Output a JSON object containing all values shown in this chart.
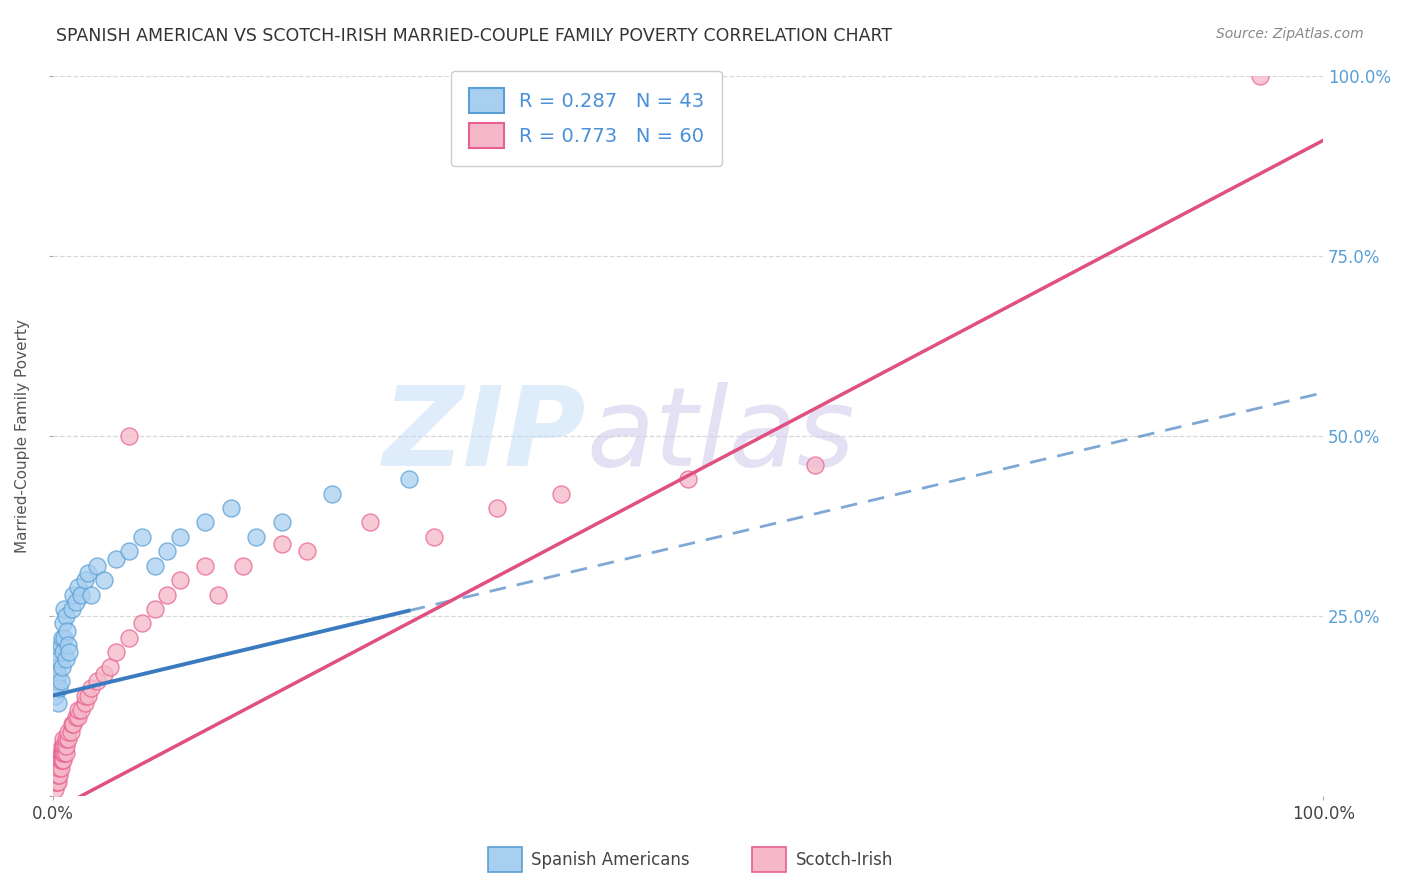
{
  "title": "SPANISH AMERICAN VS SCOTCH-IRISH MARRIED-COUPLE FAMILY POVERTY CORRELATION CHART",
  "source": "Source: ZipAtlas.com",
  "ylabel": "Married-Couple Family Poverty",
  "xmin": 0.0,
  "xmax": 1.0,
  "ymin": 0.0,
  "ymax": 1.0,
  "right_ytick_labels": [
    "100.0%",
    "75.0%",
    "50.0%",
    "25.0%"
  ],
  "right_ytick_positions": [
    1.0,
    0.75,
    0.5,
    0.25
  ],
  "blue_R": "0.287",
  "blue_N": "43",
  "pink_R": "0.773",
  "pink_N": "60",
  "blue_color": "#a8cff0",
  "pink_color": "#f5b8c8",
  "blue_edge_color": "#5a9fd4",
  "pink_edge_color": "#e86090",
  "blue_line_color": "#3a7abf",
  "pink_line_color": "#e05080",
  "background_color": "#ffffff",
  "grid_color": "#d8d8d8",
  "blue_scatter": [
    [
      0.002,
      0.14
    ],
    [
      0.003,
      0.16
    ],
    [
      0.003,
      0.18
    ],
    [
      0.003,
      0.2
    ],
    [
      0.004,
      0.13
    ],
    [
      0.004,
      0.17
    ],
    [
      0.005,
      0.15
    ],
    [
      0.005,
      0.19
    ],
    [
      0.006,
      0.16
    ],
    [
      0.006,
      0.21
    ],
    [
      0.007,
      0.22
    ],
    [
      0.007,
      0.18
    ],
    [
      0.008,
      0.2
    ],
    [
      0.008,
      0.24
    ],
    [
      0.009,
      0.22
    ],
    [
      0.009,
      0.26
    ],
    [
      0.01,
      0.25
    ],
    [
      0.01,
      0.19
    ],
    [
      0.011,
      0.23
    ],
    [
      0.012,
      0.21
    ],
    [
      0.013,
      0.2
    ],
    [
      0.015,
      0.26
    ],
    [
      0.016,
      0.28
    ],
    [
      0.018,
      0.27
    ],
    [
      0.02,
      0.29
    ],
    [
      0.022,
      0.28
    ],
    [
      0.025,
      0.3
    ],
    [
      0.028,
      0.31
    ],
    [
      0.03,
      0.28
    ],
    [
      0.035,
      0.32
    ],
    [
      0.04,
      0.3
    ],
    [
      0.05,
      0.33
    ],
    [
      0.06,
      0.34
    ],
    [
      0.07,
      0.36
    ],
    [
      0.08,
      0.32
    ],
    [
      0.09,
      0.34
    ],
    [
      0.1,
      0.36
    ],
    [
      0.12,
      0.38
    ],
    [
      0.14,
      0.4
    ],
    [
      0.16,
      0.36
    ],
    [
      0.18,
      0.38
    ],
    [
      0.22,
      0.42
    ],
    [
      0.28,
      0.44
    ]
  ],
  "pink_scatter": [
    [
      0.002,
      0.01
    ],
    [
      0.002,
      0.02
    ],
    [
      0.003,
      0.02
    ],
    [
      0.003,
      0.03
    ],
    [
      0.004,
      0.02
    ],
    [
      0.004,
      0.03
    ],
    [
      0.004,
      0.04
    ],
    [
      0.005,
      0.03
    ],
    [
      0.005,
      0.04
    ],
    [
      0.005,
      0.05
    ],
    [
      0.006,
      0.04
    ],
    [
      0.006,
      0.05
    ],
    [
      0.006,
      0.06
    ],
    [
      0.007,
      0.05
    ],
    [
      0.007,
      0.06
    ],
    [
      0.007,
      0.07
    ],
    [
      0.008,
      0.05
    ],
    [
      0.008,
      0.06
    ],
    [
      0.008,
      0.07
    ],
    [
      0.008,
      0.08
    ],
    [
      0.009,
      0.06
    ],
    [
      0.009,
      0.07
    ],
    [
      0.01,
      0.06
    ],
    [
      0.01,
      0.07
    ],
    [
      0.01,
      0.08
    ],
    [
      0.012,
      0.08
    ],
    [
      0.012,
      0.09
    ],
    [
      0.014,
      0.09
    ],
    [
      0.015,
      0.1
    ],
    [
      0.016,
      0.1
    ],
    [
      0.018,
      0.11
    ],
    [
      0.02,
      0.11
    ],
    [
      0.02,
      0.12
    ],
    [
      0.022,
      0.12
    ],
    [
      0.025,
      0.13
    ],
    [
      0.025,
      0.14
    ],
    [
      0.028,
      0.14
    ],
    [
      0.03,
      0.15
    ],
    [
      0.035,
      0.16
    ],
    [
      0.04,
      0.17
    ],
    [
      0.045,
      0.18
    ],
    [
      0.05,
      0.2
    ],
    [
      0.06,
      0.22
    ],
    [
      0.06,
      0.5
    ],
    [
      0.07,
      0.24
    ],
    [
      0.08,
      0.26
    ],
    [
      0.09,
      0.28
    ],
    [
      0.1,
      0.3
    ],
    [
      0.12,
      0.32
    ],
    [
      0.13,
      0.28
    ],
    [
      0.15,
      0.32
    ],
    [
      0.18,
      0.35
    ],
    [
      0.2,
      0.34
    ],
    [
      0.25,
      0.38
    ],
    [
      0.3,
      0.36
    ],
    [
      0.35,
      0.4
    ],
    [
      0.4,
      0.42
    ],
    [
      0.5,
      0.44
    ],
    [
      0.6,
      0.46
    ],
    [
      0.95,
      1.0
    ]
  ],
  "blue_line_slope": 0.42,
  "blue_line_intercept": 0.14,
  "blue_line_x_end": 0.28,
  "pink_line_slope": 0.93,
  "pink_line_intercept": -0.02
}
